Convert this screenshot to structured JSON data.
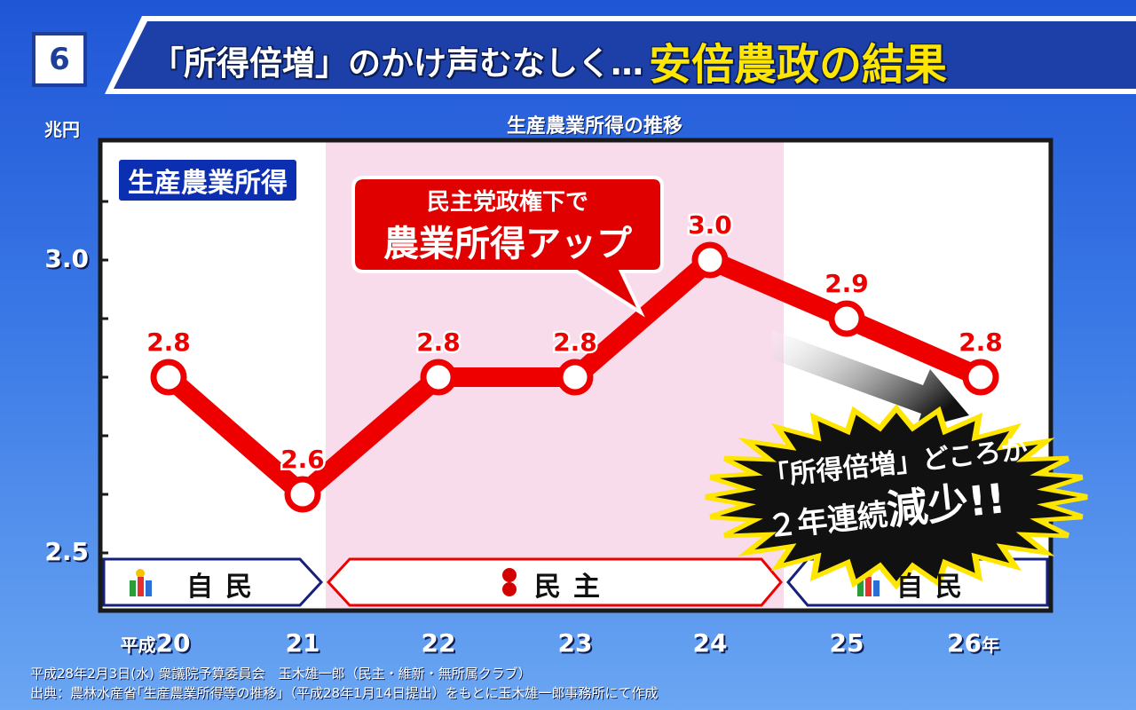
{
  "slide_number": "6",
  "title_main": "「所得倍増」のかけ声むなしく…",
  "title_emphasis": "安倍農政の結果",
  "chart_title": "生産農業所得の推移",
  "unit": "兆円",
  "legend_label": "生産農業所得",
  "x_prefix": "平成",
  "x_suffix": "年",
  "callout_top": "民主党政権下で",
  "callout_bottom": "農業所得アップ",
  "burst_line1": "「所得倍増」どころか",
  "burst_line2_a": "２年連続",
  "burst_line2_b": "減少!!",
  "periods": [
    {
      "label": "自民",
      "from": "20",
      "to": "21",
      "party": "ldp"
    },
    {
      "label": "民主",
      "from": "22",
      "to": "24",
      "party": "dpj"
    },
    {
      "label": "自民",
      "from": "25",
      "to": "26",
      "party": "ldp"
    }
  ],
  "footnote_1": "平成28年2月3日(水) 衆議院予算委員会　玉木雄一郎（民主・維新・無所属クラブ）",
  "footnote_2": "出典：農林水産省｢生産農業所得等の推移｣（平成28年1月14日提出）をもとに玉木雄一郎事務所にて作成",
  "colors": {
    "line": "#ee0000",
    "dpj_band": "#f8dcec",
    "title_bar": "#1c3fa8",
    "emphasis": "#ffe600"
  },
  "chart_data": {
    "type": "line",
    "title": "生産農業所得の推移",
    "ylabel": "兆円",
    "x": [
      "20",
      "21",
      "22",
      "23",
      "24",
      "25",
      "26"
    ],
    "series": [
      {
        "name": "生産農業所得",
        "values": [
          2.8,
          2.6,
          2.8,
          2.8,
          3.0,
          2.9,
          2.8
        ]
      }
    ],
    "data_labels": [
      "2.8",
      "2.6",
      "2.8",
      "2.8",
      "3.0",
      "2.9",
      "2.8"
    ],
    "y_ticks": [
      "2.5",
      "3.0"
    ],
    "ylim": [
      2.4,
      3.4
    ],
    "grid": false
  }
}
